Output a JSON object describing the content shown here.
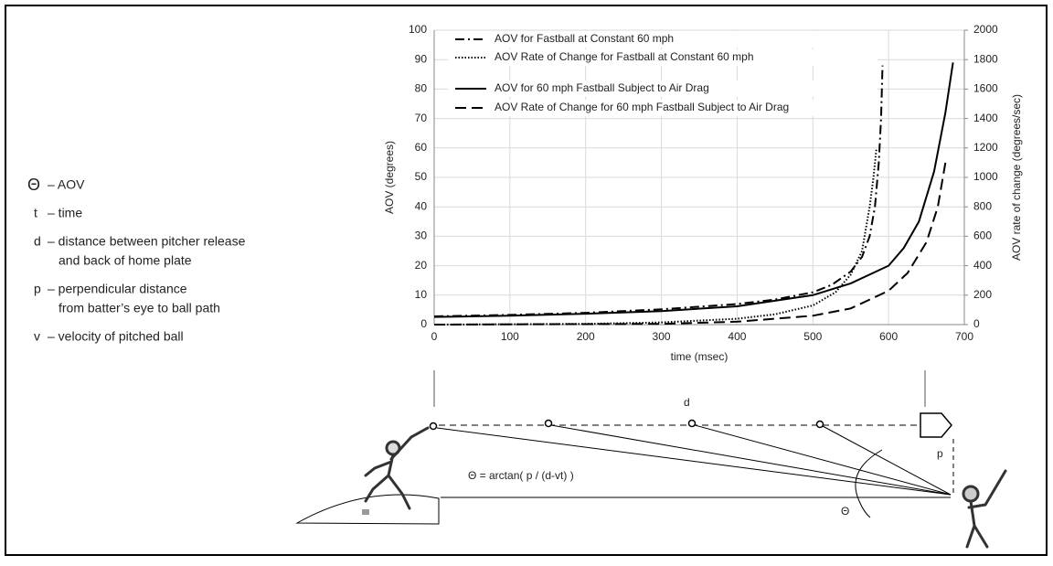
{
  "chart_data": {
    "type": "line",
    "xlabel": "time (msec)",
    "ylabel": "AOV (degrees)",
    "y2label": "AOV rate of change (degrees/sec)",
    "xlim": [
      0,
      700
    ],
    "xticks": [
      0,
      100,
      200,
      300,
      400,
      500,
      600,
      700
    ],
    "ylim": [
      0,
      100
    ],
    "yticks": [
      0,
      10,
      20,
      30,
      40,
      50,
      60,
      70,
      80,
      90,
      100
    ],
    "y2lim": [
      0,
      2000
    ],
    "y2ticks": [
      0,
      200,
      400,
      600,
      800,
      1000,
      1200,
      1400,
      1600,
      1800,
      2000
    ],
    "grid": true,
    "series": [
      {
        "name": "AOV for Fastball at Constant 60 mph",
        "color": "#000000",
        "line_style": "dash-dot",
        "x": [
          0,
          100,
          200,
          300,
          400,
          450,
          500,
          525,
          550,
          565,
          575,
          582,
          587,
          590,
          592
        ],
        "values": [
          2.8,
          3.3,
          4,
          5.2,
          7,
          8.5,
          11,
          13.5,
          18,
          23,
          30,
          40,
          55,
          70,
          88
        ]
      },
      {
        "name": "AOV Rate of Change for Fastball at Constant 60 mph",
        "color": "#000000",
        "line_style": "dotted",
        "axis": "y2",
        "x": [
          0,
          200,
          300,
          400,
          450,
          500,
          530,
          550,
          565,
          575,
          580,
          584
        ],
        "values": [
          0,
          5,
          15,
          40,
          70,
          130,
          220,
          340,
          500,
          800,
          1000,
          1200
        ]
      },
      {
        "name": "AOV for 60 mph Fastball Subject to Air Drag",
        "color": "#000000",
        "line_style": "solid",
        "x": [
          0,
          100,
          200,
          300,
          400,
          500,
          550,
          600,
          620,
          640,
          660,
          675,
          685
        ],
        "values": [
          2.6,
          3,
          3.7,
          4.6,
          6.2,
          10,
          14,
          20,
          26,
          35,
          52,
          72,
          89
        ]
      },
      {
        "name": "AOV Rate of Change for 60 mph Fastball Subject to Air Drag",
        "color": "#000000",
        "line_style": "dashed",
        "axis": "y2",
        "x": [
          0,
          300,
          400,
          500,
          550,
          600,
          625,
          650,
          665,
          675
        ],
        "values": [
          0,
          5,
          20,
          60,
          110,
          230,
          350,
          560,
          800,
          1100
        ]
      }
    ]
  },
  "symbols": [
    {
      "symbol": "Θ",
      "lines": [
        "– AOV"
      ]
    },
    {
      "symbol": "t",
      "lines": [
        "– time"
      ]
    },
    {
      "symbol": "d",
      "lines": [
        "– distance between pitcher release",
        "and back of home plate"
      ]
    },
    {
      "symbol": "p",
      "lines": [
        "– perpendicular distance",
        "from batter’s eye to ball path"
      ]
    },
    {
      "symbol": "v",
      "lines": [
        "– velocity of pitched ball"
      ]
    }
  ],
  "diagram": {
    "d_label": "d",
    "p_label": "p",
    "formula": "Θ = arctan( p / (d-vt) )",
    "angle_label": "Θ"
  }
}
